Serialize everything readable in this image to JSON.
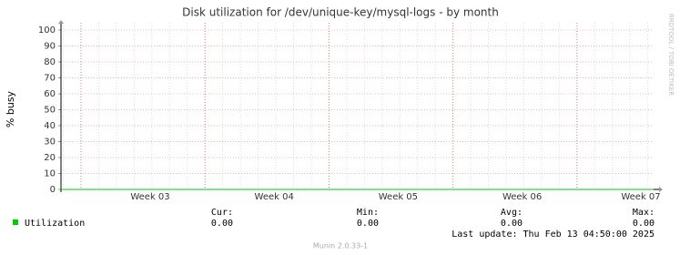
{
  "chart_data": {
    "type": "line",
    "title": "Disk utilization for /dev/unique-key/mysql-logs - by month",
    "y_label": "% busy",
    "watermark": "RRDTOOL / TOBI OETIKER",
    "categories": [
      "Week 03",
      "Week 04",
      "Week 05",
      "Week 06",
      "Week 07"
    ],
    "series": [
      {
        "name": "Utilization",
        "color": "#00cc00",
        "values": [
          0,
          0,
          0,
          0,
          0
        ]
      }
    ],
    "ylim": [
      0,
      100
    ],
    "yticks": [
      0,
      10,
      20,
      30,
      40,
      50,
      60,
      70,
      80,
      90,
      100
    ],
    "grid": true,
    "stats": {
      "labels": [
        "Cur:",
        "Min:",
        "Avg:",
        "Max:"
      ],
      "values": [
        "0.00",
        "0.00",
        "0.00",
        "0.00"
      ]
    },
    "last_update": "Last update:  Thu Feb 13 04:50:00 2025",
    "footer": "Munin 2.0.33-1"
  }
}
